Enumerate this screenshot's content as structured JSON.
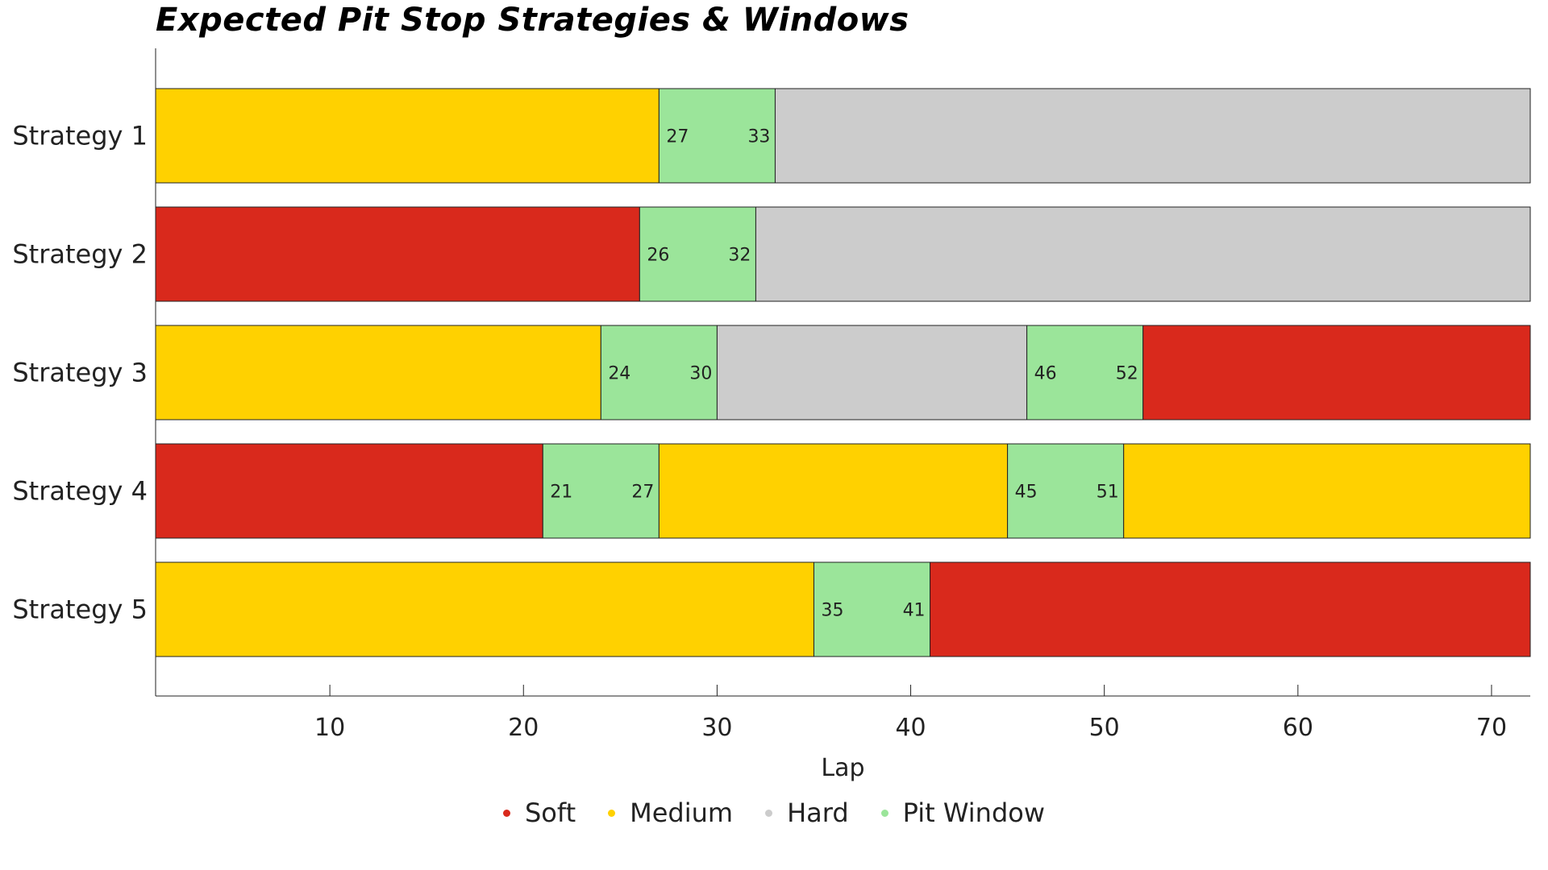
{
  "chart_data": {
    "type": "bar",
    "orientation": "horizontal-stacked",
    "title": "Expected Pit Stop Strategies & Windows",
    "xlabel": "Lap",
    "ylabel": "",
    "xlim": [
      1,
      72
    ],
    "xticks": [
      10,
      20,
      30,
      40,
      50,
      60,
      70
    ],
    "grid": false,
    "legend_position": "bottom",
    "legend": [
      {
        "name": "Soft",
        "color": "#d9291c"
      },
      {
        "name": "Medium",
        "color": "#ffd100"
      },
      {
        "name": "Hard",
        "color": "#cccccc"
      },
      {
        "name": "Pit Window",
        "color": "#9be59a"
      }
    ],
    "colors": {
      "Soft": "#d9291c",
      "Medium": "#ffd100",
      "Hard": "#cccccc",
      "Pit Window": "#9be59a"
    },
    "strategies": [
      {
        "label": "Strategy 1",
        "segments": [
          {
            "type": "Medium",
            "start": 1,
            "end": 27
          },
          {
            "type": "Pit Window",
            "start": 27,
            "end": 33
          },
          {
            "type": "Hard",
            "start": 33,
            "end": 72
          }
        ]
      },
      {
        "label": "Strategy 2",
        "segments": [
          {
            "type": "Soft",
            "start": 1,
            "end": 26
          },
          {
            "type": "Pit Window",
            "start": 26,
            "end": 32
          },
          {
            "type": "Hard",
            "start": 32,
            "end": 72
          }
        ]
      },
      {
        "label": "Strategy 3",
        "segments": [
          {
            "type": "Medium",
            "start": 1,
            "end": 24
          },
          {
            "type": "Pit Window",
            "start": 24,
            "end": 30
          },
          {
            "type": "Hard",
            "start": 30,
            "end": 46
          },
          {
            "type": "Pit Window",
            "start": 46,
            "end": 52
          },
          {
            "type": "Soft",
            "start": 52,
            "end": 72
          }
        ]
      },
      {
        "label": "Strategy 4",
        "segments": [
          {
            "type": "Soft",
            "start": 1,
            "end": 21
          },
          {
            "type": "Pit Window",
            "start": 21,
            "end": 27
          },
          {
            "type": "Medium",
            "start": 27,
            "end": 45
          },
          {
            "type": "Pit Window",
            "start": 45,
            "end": 51
          },
          {
            "type": "Medium",
            "start": 51,
            "end": 72
          }
        ]
      },
      {
        "label": "Strategy 5",
        "segments": [
          {
            "type": "Medium",
            "start": 1,
            "end": 35
          },
          {
            "type": "Pit Window",
            "start": 35,
            "end": 41
          },
          {
            "type": "Soft",
            "start": 41,
            "end": 72
          }
        ]
      }
    ]
  }
}
